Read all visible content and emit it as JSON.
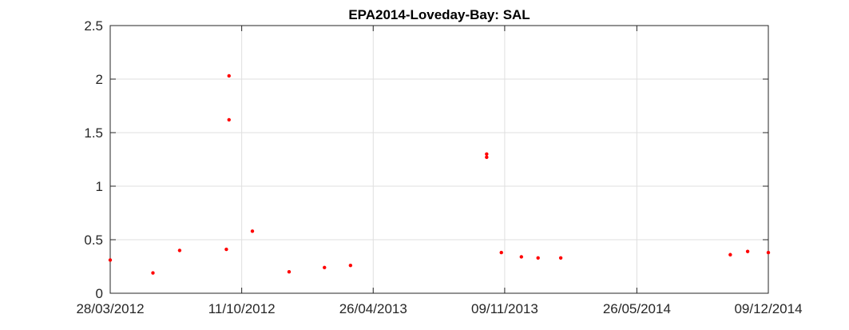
{
  "chart_data": {
    "type": "scatter",
    "title": "EPA2014-Loveday-Bay: SAL",
    "xlabel": "",
    "ylabel": "",
    "x_axis_type": "date",
    "xlim": [
      "2012-03-28",
      "2014-12-09"
    ],
    "ylim": [
      0,
      2.5
    ],
    "x_ticks": [
      "2012-03-28",
      "2012-10-11",
      "2013-04-26",
      "2013-11-09",
      "2014-05-26",
      "2014-12-09"
    ],
    "x_tick_labels": [
      "28/03/2012",
      "11/10/2012",
      "26/04/2013",
      "09/11/2013",
      "26/05/2014",
      "09/12/2014"
    ],
    "y_ticks": [
      0,
      0.5,
      1,
      1.5,
      2,
      2.5
    ],
    "y_tick_labels": [
      "0",
      "0.5",
      "1",
      "1.5",
      "2",
      "2.5"
    ],
    "grid": true,
    "marker_color": "#ff0000",
    "series": [
      {
        "points": [
          {
            "x": "2012-03-28",
            "y": 0.31
          },
          {
            "x": "2012-05-31",
            "y": 0.19
          },
          {
            "x": "2012-07-10",
            "y": 0.4
          },
          {
            "x": "2012-09-18",
            "y": 0.41
          },
          {
            "x": "2012-09-22",
            "y": 2.03
          },
          {
            "x": "2012-09-22",
            "y": 1.62
          },
          {
            "x": "2012-10-27",
            "y": 0.58
          },
          {
            "x": "2012-12-21",
            "y": 0.2
          },
          {
            "x": "2013-02-12",
            "y": 0.24
          },
          {
            "x": "2013-03-23",
            "y": 0.26
          },
          {
            "x": "2013-10-13",
            "y": 1.3
          },
          {
            "x": "2013-10-13",
            "y": 1.27
          },
          {
            "x": "2013-11-04",
            "y": 0.38
          },
          {
            "x": "2013-12-04",
            "y": 0.34
          },
          {
            "x": "2013-12-29",
            "y": 0.33
          },
          {
            "x": "2014-02-01",
            "y": 0.33
          },
          {
            "x": "2014-10-13",
            "y": 0.36
          },
          {
            "x": "2014-11-08",
            "y": 0.39
          },
          {
            "x": "2014-12-09",
            "y": 0.38
          }
        ]
      }
    ]
  }
}
